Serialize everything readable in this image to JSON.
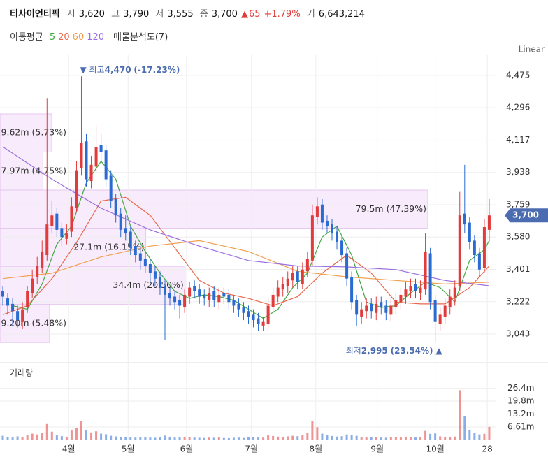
{
  "header": {
    "name": "티사이언티픽",
    "open_label": "시",
    "open": "3,620",
    "high_label": "고",
    "high": "3,790",
    "low_label": "저",
    "low": "3,555",
    "close_label": "종",
    "close": "3,700",
    "change_arrow": "▲",
    "change": "65",
    "change_rate": "+1.79%",
    "volume_label": "거",
    "volume": "6,643,214"
  },
  "chart_data": {
    "type": "candlestick",
    "scale_label": "Linear",
    "grid": true,
    "up_color": "#e23b3b",
    "down_color": "#2a6bd1",
    "last_price_color": "#4b6cb0",
    "x": [
      0,
      1,
      2,
      3,
      4,
      5,
      6,
      7,
      8,
      9,
      10,
      11,
      12,
      13,
      14,
      15,
      16,
      17,
      18,
      19,
      20,
      21,
      22,
      23,
      24,
      25,
      26,
      27,
      28,
      29,
      30,
      31,
      32,
      33,
      34,
      35,
      36,
      37,
      38,
      39,
      40,
      41,
      42,
      43,
      44,
      45,
      46,
      47,
      48,
      49,
      50,
      51,
      52,
      53,
      54,
      55,
      56,
      57,
      58,
      59,
      60,
      61,
      62,
      63,
      64,
      65,
      66,
      67,
      68,
      69,
      70,
      71,
      72,
      73,
      74,
      75,
      76,
      77,
      78,
      79,
      80,
      81,
      82,
      83,
      84,
      85,
      86,
      87,
      88,
      89,
      90,
      91,
      92,
      93,
      94,
      95,
      96,
      97,
      98,
      99
    ],
    "xlim": [
      -0.57,
      100.43
    ],
    "xticks": [
      {
        "value": 13.4,
        "label": "4월"
      },
      {
        "value": 25.5,
        "label": "5월"
      },
      {
        "value": 37.4,
        "label": "6월"
      },
      {
        "value": 50.6,
        "label": "7월"
      },
      {
        "value": 63.7,
        "label": "8월"
      },
      {
        "value": 76.2,
        "label": "9월"
      },
      {
        "value": 88,
        "label": "10월"
      },
      {
        "value": 98.6,
        "label": "28"
      }
    ],
    "ylim": [
      2958,
      4552
    ],
    "yticks": [
      {
        "value": 4475,
        "label": "4,475"
      },
      {
        "value": 4296,
        "label": "4,296"
      },
      {
        "value": 4117,
        "label": "4,117"
      },
      {
        "value": 3938,
        "label": "3,938"
      },
      {
        "value": 3759,
        "label": "3,759"
      },
      {
        "value": 3580,
        "label": "3,580"
      },
      {
        "value": 3401,
        "label": "3,401"
      },
      {
        "value": 3222,
        "label": "3,222"
      },
      {
        "value": 3043,
        "label": "3,043"
      }
    ],
    "ohlc": {
      "open": [
        3280,
        3240,
        3210,
        3170,
        3110,
        3190,
        3270,
        3360,
        3410,
        3480,
        3640,
        3710,
        3630,
        3570,
        3610,
        3740,
        3960,
        4110,
        3890,
        3970,
        4090,
        4060,
        3920,
        3790,
        3710,
        3630,
        3610,
        3530,
        3490,
        3460,
        3430,
        3390,
        3360,
        3310,
        3270,
        3250,
        3230,
        3190,
        3250,
        3310,
        3290,
        3260,
        3230,
        3280,
        3220,
        3270,
        3260,
        3230,
        3210,
        3190,
        3170,
        3150,
        3130,
        3090,
        3100,
        3190,
        3250,
        3290,
        3310,
        3340,
        3390,
        3320,
        3390,
        3450,
        3690,
        3760,
        3670,
        3650,
        3610,
        3560,
        3490,
        3360,
        3230,
        3140,
        3170,
        3210,
        3160,
        3220,
        3200,
        3150,
        3190,
        3220,
        3250,
        3280,
        3320,
        3270,
        3290,
        3490,
        3230,
        3100,
        3140,
        3190,
        3240,
        3310,
        3710,
        3660,
        3560,
        3490,
        3410,
        3620
      ],
      "high": [
        3310,
        3270,
        3240,
        3200,
        3220,
        3310,
        3400,
        3470,
        3560,
        4350,
        3780,
        3740,
        3660,
        3650,
        3800,
        4000,
        4470,
        4150,
        4030,
        4200,
        4150,
        4090,
        3950,
        3820,
        3740,
        3700,
        3640,
        3560,
        3530,
        3500,
        3460,
        3420,
        3390,
        3340,
        3300,
        3280,
        3260,
        3290,
        3330,
        3340,
        3320,
        3290,
        3300,
        3310,
        3300,
        3300,
        3290,
        3260,
        3240,
        3220,
        3200,
        3180,
        3160,
        3140,
        3240,
        3300,
        3340,
        3360,
        3390,
        3420,
        3420,
        3440,
        3500,
        3760,
        3800,
        3790,
        3700,
        3680,
        3640,
        3590,
        3520,
        3390,
        3260,
        3220,
        3240,
        3240,
        3250,
        3250,
        3230,
        3240,
        3270,
        3300,
        3330,
        3350,
        3350,
        3340,
        3600,
        3520,
        3260,
        3190,
        3240,
        3290,
        3340,
        3830,
        3980,
        3690,
        3590,
        3520,
        3680,
        3790
      ],
      "low": [
        3200,
        3150,
        3090,
        3080,
        3070,
        3160,
        3240,
        3320,
        3380,
        3450,
        3600,
        3580,
        3530,
        3540,
        3580,
        3720,
        3920,
        3860,
        3850,
        3940,
        3990,
        3860,
        3740,
        3660,
        3580,
        3560,
        3480,
        3440,
        3400,
        3380,
        3330,
        3310,
        3260,
        3010,
        3200,
        3180,
        3130,
        3160,
        3210,
        3240,
        3210,
        3200,
        3190,
        3190,
        3180,
        3210,
        3180,
        3160,
        3140,
        3120,
        3100,
        3080,
        3060,
        3060,
        3070,
        3160,
        3220,
        3250,
        3270,
        3300,
        3290,
        3290,
        3360,
        3420,
        3650,
        3620,
        3600,
        3560,
        3510,
        3440,
        3310,
        3180,
        3090,
        3100,
        3130,
        3130,
        3120,
        3150,
        3120,
        3110,
        3150,
        3180,
        3210,
        3240,
        3240,
        3230,
        3260,
        3180,
        2995,
        3060,
        3100,
        3150,
        3200,
        3280,
        3600,
        3510,
        3440,
        3360,
        3380,
        3555
      ],
      "close": [
        3250,
        3200,
        3170,
        3120,
        3180,
        3280,
        3350,
        3420,
        3500,
        3650,
        3700,
        3620,
        3580,
        3600,
        3750,
        3950,
        4100,
        3900,
        3980,
        4080,
        4050,
        3900,
        3780,
        3700,
        3620,
        3600,
        3520,
        3480,
        3450,
        3420,
        3380,
        3350,
        3300,
        3260,
        3240,
        3220,
        3200,
        3260,
        3300,
        3280,
        3250,
        3240,
        3270,
        3230,
        3260,
        3250,
        3220,
        3200,
        3180,
        3160,
        3140,
        3120,
        3100,
        3110,
        3200,
        3260,
        3300,
        3320,
        3350,
        3380,
        3330,
        3400,
        3460,
        3700,
        3750,
        3660,
        3640,
        3600,
        3550,
        3480,
        3350,
        3220,
        3150,
        3180,
        3200,
        3170,
        3210,
        3190,
        3160,
        3200,
        3230,
        3260,
        3290,
        3310,
        3280,
        3300,
        3500,
        3220,
        3110,
        3150,
        3200,
        3250,
        3300,
        3700,
        3650,
        3550,
        3480,
        3400,
        3635,
        3700
      ]
    },
    "moving_averages": {
      "label": "이동평균",
      "series": [
        {
          "name": "5",
          "color": "#43a843",
          "x": [
            2,
            5,
            8,
            11,
            14,
            17,
            20,
            23,
            26,
            29,
            32,
            35,
            38,
            41,
            44,
            47,
            50,
            53,
            56,
            59,
            62,
            65,
            68,
            71,
            74,
            77,
            80,
            83,
            86,
            89,
            92,
            95,
            98,
            99
          ],
          "values": [
            3200,
            3180,
            3320,
            3540,
            3640,
            3880,
            4000,
            3900,
            3640,
            3500,
            3380,
            3280,
            3240,
            3260,
            3250,
            3230,
            3180,
            3130,
            3180,
            3300,
            3380,
            3580,
            3640,
            3480,
            3220,
            3190,
            3200,
            3270,
            3330,
            3300,
            3220,
            3450,
            3510,
            3560
          ]
        },
        {
          "name": "20",
          "color": "#e8674a",
          "x": [
            0,
            5,
            10,
            15,
            20,
            25,
            30,
            35,
            40,
            45,
            50,
            55,
            60,
            65,
            70,
            75,
            80,
            85,
            90,
            95,
            99
          ],
          "values": [
            3150,
            3200,
            3350,
            3550,
            3780,
            3800,
            3700,
            3520,
            3340,
            3270,
            3240,
            3200,
            3250,
            3380,
            3480,
            3380,
            3220,
            3210,
            3210,
            3300,
            3420
          ]
        },
        {
          "name": "60",
          "color": "#f0a050",
          "x": [
            0,
            10,
            20,
            30,
            40,
            50,
            60,
            70,
            80,
            90,
            99
          ],
          "values": [
            3350,
            3380,
            3470,
            3530,
            3560,
            3500,
            3390,
            3360,
            3340,
            3320,
            3330
          ]
        },
        {
          "name": "120",
          "color": "#9b6fe0",
          "x": [
            0,
            10,
            20,
            30,
            40,
            50,
            60,
            70,
            80,
            90,
            99
          ],
          "values": [
            4080,
            3900,
            3740,
            3620,
            3530,
            3450,
            3420,
            3415,
            3400,
            3340,
            3310
          ]
        }
      ]
    },
    "volume_profile": {
      "label": "매물분석도(7)",
      "lows": [
        2996,
        3207,
        3418,
        3629,
        3840,
        4051
      ],
      "highs": [
        3207,
        3418,
        3629,
        3840,
        4051,
        4262
      ],
      "values": [
        9.2,
        34.4,
        27.1,
        79.5,
        7.97,
        9.62
      ],
      "value_labels": [
        "9.20m (5.48%)",
        "34.4m (20.50%)",
        "27.1m (16.15%)",
        "79.5m (47.39%)",
        "7.97m (4.75%)",
        "9.62m (5.73%)"
      ]
    },
    "volume": {
      "label": "거래량",
      "ylim": [
        0,
        35
      ],
      "yticks": [
        {
          "value": 26.4,
          "label": "26.4m"
        },
        {
          "value": 19.8,
          "label": "19.8m"
        },
        {
          "value": 13.2,
          "label": "13.2m"
        },
        {
          "value": 6.61,
          "label": "6.61m"
        }
      ],
      "values": [
        2.1,
        1.5,
        1.2,
        1.8,
        1.3,
        2.5,
        3.2,
        2.8,
        3.5,
        8.1,
        4.2,
        2.6,
        1.9,
        1.5,
        4.8,
        6.2,
        9.5,
        5.1,
        3.8,
        4.4,
        3.2,
        2.9,
        2.1,
        1.8,
        1.6,
        1.4,
        1.3,
        1.2,
        1.5,
        1.3,
        1.2,
        1.1,
        1.4,
        2.2,
        1.3,
        1.2,
        1.5,
        1.6,
        1.4,
        1.2,
        1.1,
        1.0,
        1.2,
        1.1,
        1.3,
        1.0,
        0.9,
        1.1,
        1.2,
        1.0,
        1.3,
        1.4,
        1.6,
        1.2,
        2.3,
        2.0,
        1.7,
        1.5,
        1.8,
        2.1,
        1.9,
        2.6,
        3.4,
        9.8,
        6.5,
        3.2,
        2.4,
        2.0,
        1.7,
        1.9,
        2.8,
        2.5,
        2.1,
        1.6,
        1.4,
        1.3,
        1.5,
        1.2,
        1.1,
        1.3,
        1.4,
        1.6,
        1.5,
        1.3,
        1.2,
        1.4,
        4.6,
        3.1,
        3.3,
        1.8,
        1.5,
        1.4,
        1.7,
        25.4,
        12.3,
        5.2,
        3.5,
        2.8,
        3.1,
        6.64
      ]
    },
    "high_marker": {
      "arrow": "▼",
      "label": "최고",
      "price": "4,470",
      "change": "(-17.23%)"
    },
    "low_marker": {
      "label": "최저",
      "price": "2,995",
      "change": "(23.54%)",
      "arrow": "▲"
    }
  }
}
